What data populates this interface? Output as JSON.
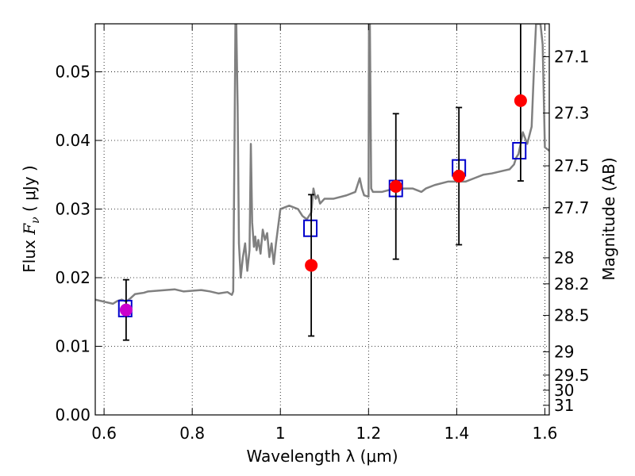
{
  "chart_data": {
    "type": "scatter",
    "xlabel": "Wavelength  λ (μm)",
    "ylabel": {
      "prefix": "Flux  ",
      "symbol": "F",
      "subscript": "ν",
      "units": "  ( μJy )"
    },
    "ylabel_right": "Magnitude (AB)",
    "xlim": [
      0.58,
      1.61
    ],
    "ylim": [
      0.0,
      0.057
    ],
    "grid": true,
    "x_ticks": [
      0.6,
      0.8,
      1.0,
      1.2,
      1.4,
      1.6
    ],
    "x_tick_labels": [
      "0.6",
      "0.8",
      "1",
      "1.2",
      "1.4",
      "1.6"
    ],
    "y_ticks": [
      0.0,
      0.01,
      0.02,
      0.03,
      0.04,
      0.05
    ],
    "y_tick_labels": [
      "0.00",
      "0.01",
      "0.02",
      "0.03",
      "0.04",
      "0.05"
    ],
    "right_ticks": [
      {
        "label": "27.1",
        "flux": 0.0522
      },
      {
        "label": "27.3",
        "flux": 0.044
      },
      {
        "label": "27.5",
        "flux": 0.0363
      },
      {
        "label": "27.7",
        "flux": 0.0302
      },
      {
        "label": "28",
        "flux": 0.0229
      },
      {
        "label": "28.2",
        "flux": 0.0191
      },
      {
        "label": "28.5",
        "flux": 0.0145
      },
      {
        "label": "29",
        "flux": 0.0092
      },
      {
        "label": "29.5",
        "flux": 0.0058
      },
      {
        "label": "30",
        "flux": 0.0036
      },
      {
        "label": "31",
        "flux": 0.0014
      }
    ],
    "sed_model": {
      "color": "#808080",
      "x": [
        0.58,
        0.6,
        0.62,
        0.63,
        0.64,
        0.65,
        0.66,
        0.67,
        0.68,
        0.69,
        0.7,
        0.72,
        0.74,
        0.76,
        0.78,
        0.8,
        0.82,
        0.84,
        0.86,
        0.88,
        0.89,
        0.893,
        0.896,
        0.898,
        0.9,
        0.903,
        0.906,
        0.91,
        0.915,
        0.92,
        0.925,
        0.93,
        0.933,
        0.936,
        0.94,
        0.943,
        0.946,
        0.95,
        0.955,
        0.96,
        0.965,
        0.97,
        0.975,
        0.98,
        0.985,
        0.99,
        1.0,
        1.02,
        1.04,
        1.05,
        1.06,
        1.07,
        1.075,
        1.08,
        1.085,
        1.09,
        1.1,
        1.12,
        1.15,
        1.17,
        1.18,
        1.185,
        1.19,
        1.2,
        1.201,
        1.203,
        1.206,
        1.21,
        1.23,
        1.26,
        1.3,
        1.32,
        1.33,
        1.35,
        1.38,
        1.4,
        1.42,
        1.44,
        1.46,
        1.48,
        1.5,
        1.52,
        1.53,
        1.535,
        1.54,
        1.545,
        1.55,
        1.56,
        1.57,
        1.575,
        1.58,
        1.585,
        1.59,
        1.595,
        1.6,
        1.61
      ],
      "y": [
        0.0168,
        0.0165,
        0.0162,
        0.0166,
        0.0168,
        0.0165,
        0.017,
        0.0176,
        0.0177,
        0.0178,
        0.018,
        0.0181,
        0.0182,
        0.0183,
        0.018,
        0.0181,
        0.0182,
        0.018,
        0.0177,
        0.0179,
        0.0175,
        0.018,
        0.04,
        0.057,
        0.057,
        0.045,
        0.025,
        0.02,
        0.023,
        0.025,
        0.021,
        0.024,
        0.0395,
        0.028,
        0.0245,
        0.026,
        0.024,
        0.0255,
        0.0235,
        0.027,
        0.0255,
        0.0265,
        0.023,
        0.025,
        0.022,
        0.025,
        0.03,
        0.0305,
        0.03,
        0.029,
        0.0285,
        0.0295,
        0.033,
        0.0315,
        0.032,
        0.0308,
        0.0315,
        0.0315,
        0.032,
        0.0325,
        0.0345,
        0.033,
        0.032,
        0.0318,
        0.057,
        0.057,
        0.033,
        0.0325,
        0.0325,
        0.033,
        0.033,
        0.0325,
        0.033,
        0.0335,
        0.034,
        0.034,
        0.034,
        0.0345,
        0.035,
        0.0352,
        0.0355,
        0.0358,
        0.0365,
        0.0375,
        0.038,
        0.0395,
        0.0412,
        0.0395,
        0.042,
        0.05,
        0.057,
        0.057,
        0.057,
        0.054,
        0.039,
        0.0385
      ]
    },
    "model_photometry": {
      "name": "",
      "marker": "square",
      "color": "#0000cc",
      "x": [
        0.648,
        1.068,
        1.262,
        1.405,
        1.542
      ],
      "y": [
        0.0155,
        0.0272,
        0.033,
        0.036,
        0.0385
      ]
    },
    "observed_photometry": {
      "name": "",
      "marker": "circle",
      "color": "#ff0000",
      "first_point_color": "#cc00cc",
      "errorbar_color": "#000000",
      "x": [
        0.65,
        1.07,
        1.262,
        1.405,
        1.545
      ],
      "y": [
        0.0153,
        0.0218,
        0.0333,
        0.0348,
        0.0458
      ],
      "y_err": [
        0.0044,
        0.0103,
        0.0106,
        0.01,
        0.0117
      ]
    }
  }
}
